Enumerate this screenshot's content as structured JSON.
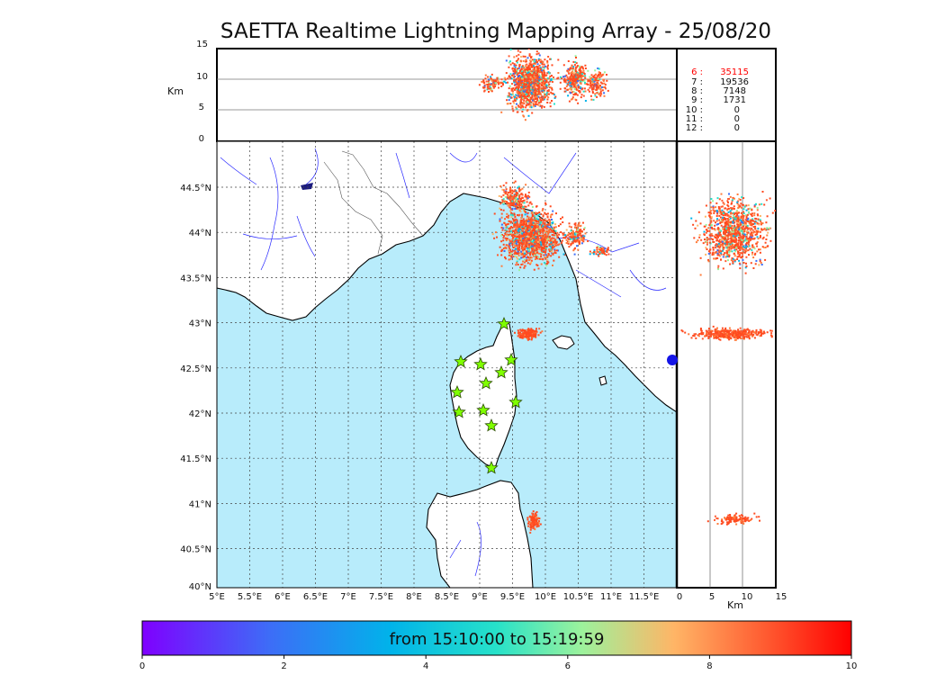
{
  "title": "SAETTA Realtime Lightning Mapping Array - 25/08/20",
  "altitude_axis": {
    "unit": "Km",
    "ticks": [
      "15",
      "10",
      "5",
      "0"
    ]
  },
  "map": {
    "lon_ticks": [
      "5°E",
      "5.5°E",
      "6°E",
      "6.5°E",
      "7°E",
      "7.5°E",
      "8°E",
      "8.5°E",
      "9°E",
      "9.5°E",
      "10°E",
      "10.5°E",
      "11°E",
      "11.5°E"
    ],
    "lat_ticks": [
      "44.5°N",
      "44°N",
      "43.5°N",
      "43°N",
      "42.5°N",
      "42°N",
      "41.5°N",
      "41°N",
      "40.5°N",
      "40°N"
    ],
    "colors": {
      "sea": "#b8ecfb",
      "land": "#ffffff",
      "rivers": "#2a2aff",
      "lightning_main": "#ff4a1f",
      "station": "#7fff00"
    }
  },
  "side_axis": {
    "unit": "Km",
    "ticks": [
      "0",
      "5",
      "10",
      "15"
    ]
  },
  "station_counts": [
    {
      "label": "6 :",
      "value": "35115",
      "color": "#ff0000"
    },
    {
      "label": "7 :",
      "value": "19536",
      "color": "#111111"
    },
    {
      "label": "8 :",
      "value": "7148",
      "color": "#111111"
    },
    {
      "label": "9 :",
      "value": "1731",
      "color": "#111111"
    },
    {
      "label": "10 :",
      "value": "0",
      "color": "#111111"
    },
    {
      "label": "11 :",
      "value": "0",
      "color": "#111111"
    },
    {
      "label": "12 :",
      "value": "0",
      "color": "#111111"
    }
  ],
  "colorbar": {
    "label": "from 15:10:00 to 15:19:59",
    "ticks": [
      "0",
      "2",
      "4",
      "6",
      "8",
      "10"
    ],
    "range": [
      0,
      10
    ]
  }
}
